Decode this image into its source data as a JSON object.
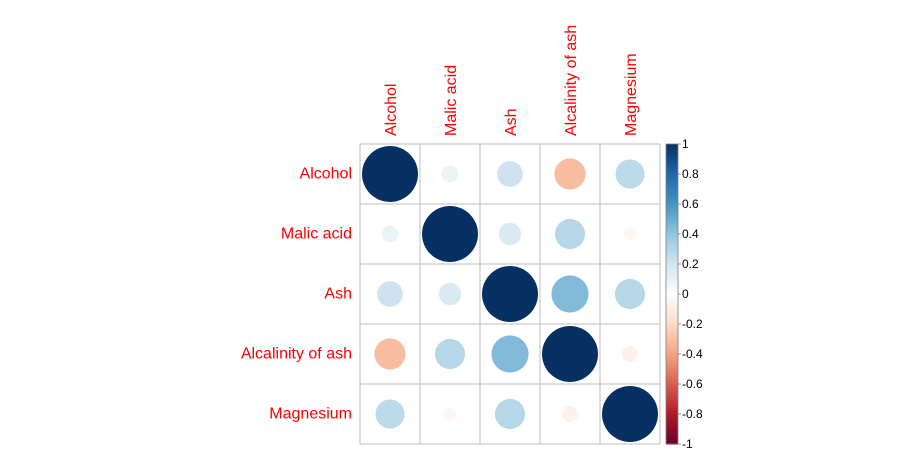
{
  "chart_data": {
    "type": "heatmap",
    "variables": [
      "Alcohol",
      "Malic acid",
      "Ash",
      "Alcalinity of ash",
      "Magnesium"
    ],
    "matrix": [
      [
        1.0,
        0.09,
        0.21,
        -0.31,
        0.27
      ],
      [
        0.09,
        1.0,
        0.16,
        0.29,
        -0.05
      ],
      [
        0.21,
        0.16,
        1.0,
        0.44,
        0.29
      ],
      [
        -0.31,
        0.29,
        0.44,
        1.0,
        -0.08
      ],
      [
        0.27,
        -0.05,
        0.29,
        -0.08,
        1.0
      ]
    ],
    "label_color": "#FF0000",
    "grid_color": "#BEBEBE",
    "colorbar": {
      "range": [
        -1,
        1
      ],
      "ticks": [
        "-1",
        "-0.8",
        "-0.6",
        "-0.4",
        "-0.2",
        "0",
        "0.2",
        "0.4",
        "0.6",
        "0.8",
        "1"
      ],
      "colors": [
        "#67001F",
        "#B2182B",
        "#D6604D",
        "#F4A582",
        "#FDDBC7",
        "#FFFFFF",
        "#D1E5F0",
        "#92C5DE",
        "#4393C3",
        "#2166AC",
        "#053061"
      ]
    }
  }
}
